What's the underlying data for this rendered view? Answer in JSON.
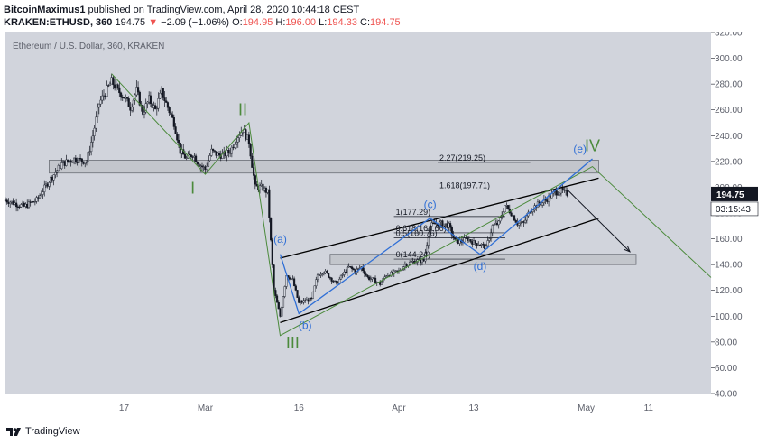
{
  "header": {
    "author": "BitcoinMaximus1",
    "published_text": "published on TradingView.com, April 28, 2020 10:44:18 CEST",
    "symbol": "KRAKEN:ETHUSD, 360",
    "last_price": "194.75",
    "change": "−2.09 (−1.06%)",
    "open_label": "O:",
    "open": "194.95",
    "high_label": "H:",
    "high": "196.00",
    "low_label": "L:",
    "low": "194.33",
    "close_label": "C:",
    "close": "194.75"
  },
  "chart": {
    "watermark": "Ethereum / U.S. Dollar, 360, KRAKEN",
    "price_badge": "194.75",
    "countdown_badge": "03:15:43",
    "colors": {
      "background": "#d1d4dc",
      "candle": "#131722",
      "green_wave": "#4b8a3b",
      "blue_wave": "#2f6fd6",
      "channel": "#000000",
      "zone_fill": "#c3c6cc",
      "badge_bg": "#131722"
    }
  },
  "footer": {
    "brand": "TradingView"
  },
  "chart_data": {
    "type": "candlestick",
    "title": "Ethereum / U.S. Dollar, 360, KRAKEN",
    "y_axis": {
      "ticks": [
        "320.00",
        "300.00",
        "280.00",
        "260.00",
        "240.00",
        "220.00",
        "200.00",
        "180.00",
        "160.00",
        "140.00",
        "120.00",
        "100.00",
        "80.00",
        "60.00",
        "40.00"
      ],
      "ylim": [
        40,
        320
      ]
    },
    "x_axis": {
      "ticks": [
        "17",
        "Mar",
        "16",
        "Apr",
        "13",
        "May",
        "11"
      ],
      "tick_dates": [
        "2020-02-17",
        "2020-03-01",
        "2020-03-16",
        "2020-04-01",
        "2020-04-13",
        "2020-05-01",
        "2020-05-11"
      ],
      "xlim": [
        "2020-01-29",
        "2020-05-21"
      ]
    },
    "price_path": [
      [
        "2020-01-29",
        190
      ],
      [
        "2020-02-01",
        185
      ],
      [
        "2020-02-03",
        190
      ],
      [
        "2020-02-05",
        205
      ],
      [
        "2020-02-07",
        218
      ],
      [
        "2020-02-09",
        222
      ],
      [
        "2020-02-11",
        220
      ],
      [
        "2020-02-12",
        240
      ],
      [
        "2020-02-13",
        265
      ],
      [
        "2020-02-15",
        282
      ],
      [
        "2020-02-16",
        275
      ],
      [
        "2020-02-17",
        270
      ],
      [
        "2020-02-18",
        262
      ],
      [
        "2020-02-19",
        275
      ],
      [
        "2020-02-20",
        258
      ],
      [
        "2020-02-21",
        268
      ],
      [
        "2020-02-22",
        260
      ],
      [
        "2020-02-23",
        274
      ],
      [
        "2020-02-24",
        262
      ],
      [
        "2020-02-25",
        250
      ],
      [
        "2020-02-26",
        228
      ],
      [
        "2020-02-27",
        222
      ],
      [
        "2020-02-28",
        226
      ],
      [
        "2020-02-29",
        218
      ],
      [
        "2020-03-01",
        214
      ],
      [
        "2020-03-02",
        228
      ],
      [
        "2020-03-03",
        225
      ],
      [
        "2020-03-04",
        225
      ],
      [
        "2020-03-05",
        228
      ],
      [
        "2020-03-06",
        238
      ],
      [
        "2020-03-07",
        245
      ],
      [
        "2020-03-08",
        235
      ],
      [
        "2020-03-09",
        200
      ],
      [
        "2020-03-10",
        200
      ],
      [
        "2020-03-11",
        196
      ],
      [
        "2020-03-12",
        120
      ],
      [
        "2020-03-13",
        100
      ],
      [
        "2020-03-14",
        132
      ],
      [
        "2020-03-15",
        128
      ],
      [
        "2020-03-16",
        110
      ],
      [
        "2020-03-17",
        112
      ],
      [
        "2020-03-18",
        113
      ],
      [
        "2020-03-19",
        132
      ],
      [
        "2020-03-20",
        135
      ],
      [
        "2020-03-21",
        130
      ],
      [
        "2020-03-22",
        125
      ],
      [
        "2020-03-23",
        132
      ],
      [
        "2020-03-24",
        138
      ],
      [
        "2020-03-25",
        135
      ],
      [
        "2020-03-26",
        138
      ],
      [
        "2020-03-27",
        130
      ],
      [
        "2020-03-28",
        128
      ],
      [
        "2020-03-29",
        125
      ],
      [
        "2020-03-30",
        132
      ],
      [
        "2020-03-31",
        133
      ],
      [
        "2020-04-01",
        135
      ],
      [
        "2020-04-02",
        140
      ],
      [
        "2020-04-03",
        142
      ],
      [
        "2020-04-04",
        143
      ],
      [
        "2020-04-05",
        143
      ],
      [
        "2020-04-06",
        170
      ],
      [
        "2020-04-07",
        172
      ],
      [
        "2020-04-08",
        172
      ],
      [
        "2020-04-09",
        170
      ],
      [
        "2020-04-10",
        158
      ],
      [
        "2020-04-11",
        158
      ],
      [
        "2020-04-12",
        160
      ],
      [
        "2020-04-13",
        157
      ],
      [
        "2020-04-14",
        156
      ],
      [
        "2020-04-15",
        153
      ],
      [
        "2020-04-16",
        170
      ],
      [
        "2020-04-17",
        172
      ],
      [
        "2020-04-18",
        186
      ],
      [
        "2020-04-19",
        180
      ],
      [
        "2020-04-20",
        172
      ],
      [
        "2020-04-21",
        172
      ],
      [
        "2020-04-22",
        182
      ],
      [
        "2020-04-23",
        186
      ],
      [
        "2020-04-24",
        188
      ],
      [
        "2020-04-25",
        192
      ],
      [
        "2020-04-26",
        196
      ],
      [
        "2020-04-27",
        197
      ],
      [
        "2020-04-28",
        194.75
      ]
    ],
    "zones": [
      {
        "from": "2020-02-05",
        "to": "2020-05-03",
        "y0": 211,
        "y1": 221
      },
      {
        "from": "2020-03-21",
        "to": "2020-05-09",
        "y0": 140,
        "y1": 148
      }
    ],
    "fib_levels": [
      {
        "label": "2.27(219.25)",
        "value": 219.25,
        "from": "2020-04-13",
        "to": "2020-04-18"
      },
      {
        "label": "1.618(197.71)",
        "value": 197.71,
        "from": "2020-04-13",
        "to": "2020-04-18"
      },
      {
        "label": "1(177.29)",
        "value": 177.29,
        "from": "2020-04-06",
        "to": "2020-04-14"
      },
      {
        "label": "0.618(164.66)",
        "value": 164.66,
        "from": "2020-04-06",
        "to": "2020-04-14"
      },
      {
        "label": "0.5(160.76)",
        "value": 160.76,
        "from": "2020-04-06",
        "to": "2020-04-14"
      },
      {
        "label": "0(144.24)",
        "value": 144.24,
        "from": "2020-04-06",
        "to": "2020-04-14"
      }
    ],
    "channel_lines": [
      {
        "from": [
          "2020-03-13",
          145
        ],
        "to": [
          "2020-05-03",
          207
        ]
      },
      {
        "from": [
          "2020-03-13",
          95
        ],
        "to": [
          "2020-05-03",
          176
        ]
      }
    ],
    "green_wave": [
      [
        "2020-02-15",
        288
      ],
      [
        "2020-03-01",
        210
      ],
      [
        "2020-03-08",
        250
      ],
      [
        "2020-03-13",
        85
      ],
      [
        "2020-05-02",
        216
      ],
      [
        "2020-05-21",
        130
      ]
    ],
    "blue_wave": [
      [
        "2020-03-13",
        148
      ],
      [
        "2020-03-16",
        102
      ],
      [
        "2020-04-06",
        176
      ],
      [
        "2020-04-14",
        148
      ],
      [
        "2020-05-02",
        222
      ]
    ],
    "projection_arrows": [
      {
        "from": [
          "2020-04-28",
          198
        ],
        "to": [
          "2020-05-08",
          150
        ]
      }
    ],
    "labels": [
      {
        "text": "I",
        "at": [
          "2020-02-28",
          195
        ],
        "color": "green_wave"
      },
      {
        "text": "II",
        "at": [
          "2020-03-07",
          256
        ],
        "color": "green_wave"
      },
      {
        "text": "III",
        "at": [
          "2020-03-15",
          75
        ],
        "color": "green_wave"
      },
      {
        "text": "IV",
        "at": [
          "2020-05-02",
          228
        ],
        "color": "green_wave"
      },
      {
        "text": "(a)",
        "at": [
          "2020-03-13",
          157
        ],
        "color": "blue_wave"
      },
      {
        "text": "(b)",
        "at": [
          "2020-03-17",
          90
        ],
        "color": "blue_wave"
      },
      {
        "text": "(c)",
        "at": [
          "2020-04-06",
          184
        ],
        "color": "blue_wave"
      },
      {
        "text": "(d)",
        "at": [
          "2020-04-14",
          136
        ],
        "color": "blue_wave"
      },
      {
        "text": "(e)",
        "at": [
          "2020-04-30",
          227
        ],
        "color": "blue_wave"
      }
    ]
  }
}
